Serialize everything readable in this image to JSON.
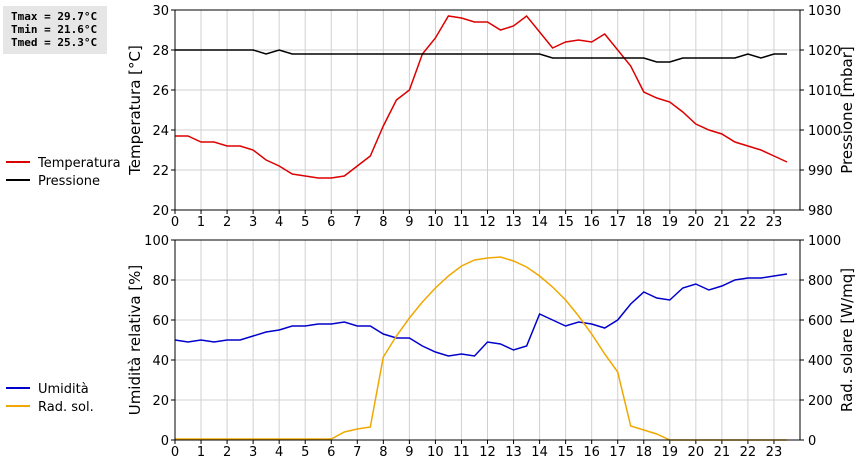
{
  "stats": {
    "tmax": "Tmax = 29.7°C",
    "tmin": "Tmin = 21.6°C",
    "tmed": "Tmed = 25.3°C"
  },
  "chart_data": [
    {
      "type": "line",
      "left_ylabel": "Temperatura [°C]",
      "right_ylabel": "Pressione [mbar]",
      "xlim": [
        0,
        24
      ],
      "xticks": [
        0,
        1,
        2,
        3,
        4,
        5,
        6,
        7,
        8,
        9,
        10,
        11,
        12,
        13,
        14,
        15,
        16,
        17,
        18,
        19,
        20,
        21,
        22,
        23
      ],
      "left_ylim": [
        20,
        30
      ],
      "left_yticks": [
        20,
        22,
        24,
        26,
        28,
        30
      ],
      "right_ylim": [
        980,
        1030
      ],
      "right_yticks": [
        980,
        990,
        1000,
        1010,
        1020,
        1030
      ],
      "grid": true,
      "series": [
        {
          "name": "Temperatura",
          "axis": "left",
          "color": "#dd0000",
          "x": [
            0,
            0.5,
            1,
            1.5,
            2,
            2.5,
            3,
            3.5,
            4,
            4.5,
            5,
            5.5,
            6,
            6.5,
            7,
            7.5,
            8,
            8.5,
            9,
            9.5,
            10,
            10.5,
            11,
            11.5,
            12,
            12.5,
            13,
            13.5,
            14,
            14.5,
            15,
            15.5,
            16,
            16.5,
            17,
            17.5,
            18,
            18.5,
            19,
            19.5,
            20,
            20.5,
            21,
            21.5,
            22,
            22.5,
            23,
            23.5
          ],
          "y": [
            23.7,
            23.7,
            23.4,
            23.4,
            23.2,
            23.2,
            23.0,
            22.5,
            22.2,
            21.8,
            21.7,
            21.6,
            21.6,
            21.7,
            22.2,
            22.7,
            24.2,
            25.5,
            26.0,
            27.8,
            28.6,
            29.7,
            29.6,
            29.4,
            29.4,
            29.0,
            29.2,
            29.7,
            28.9,
            28.1,
            28.4,
            28.5,
            28.4,
            28.8,
            28.0,
            27.2,
            25.9,
            25.6,
            25.4,
            24.9,
            24.3,
            24.0,
            23.8,
            23.4,
            23.2,
            23.0,
            22.7,
            22.4
          ]
        },
        {
          "name": "Pressione",
          "axis": "right",
          "color": "#000000",
          "x": [
            0,
            0.5,
            1,
            1.5,
            2,
            2.5,
            3,
            3.5,
            4,
            4.5,
            5,
            5.5,
            6,
            6.5,
            7,
            7.5,
            8,
            8.5,
            9,
            9.5,
            10,
            10.5,
            11,
            11.5,
            12,
            12.5,
            13,
            13.5,
            14,
            14.5,
            15,
            15.5,
            16,
            16.5,
            17,
            17.5,
            18,
            18.5,
            19,
            19.5,
            20,
            20.5,
            21,
            21.5,
            22,
            22.5,
            23,
            23.5
          ],
          "y": [
            1020,
            1020,
            1020,
            1020,
            1020,
            1020,
            1020,
            1019,
            1020,
            1019,
            1019,
            1019,
            1019,
            1019,
            1019,
            1019,
            1019,
            1019,
            1019,
            1019,
            1019,
            1019,
            1019,
            1019,
            1019,
            1019,
            1019,
            1019,
            1019,
            1018,
            1018,
            1018,
            1018,
            1018,
            1018,
            1018,
            1018,
            1017,
            1017,
            1018,
            1018,
            1018,
            1018,
            1018,
            1019,
            1018,
            1019,
            1019
          ]
        }
      ]
    },
    {
      "type": "line",
      "left_ylabel": "Umidità relativa [%]",
      "right_ylabel": "Rad. solare [W/mq]",
      "xlim": [
        0,
        24
      ],
      "xticks": [
        0,
        1,
        2,
        3,
        4,
        5,
        6,
        7,
        8,
        9,
        10,
        11,
        12,
        13,
        14,
        15,
        16,
        17,
        18,
        19,
        20,
        21,
        22,
        23
      ],
      "left_ylim": [
        0,
        100
      ],
      "left_yticks": [
        0,
        20,
        40,
        60,
        80,
        100
      ],
      "right_ylim": [
        0,
        1000
      ],
      "right_yticks": [
        0,
        200,
        400,
        600,
        800,
        1000
      ],
      "grid": true,
      "series": [
        {
          "name": "Umidità",
          "axis": "left",
          "color": "#0000cc",
          "x": [
            0,
            0.5,
            1,
            1.5,
            2,
            2.5,
            3,
            3.5,
            4,
            4.5,
            5,
            5.5,
            6,
            6.5,
            7,
            7.5,
            8,
            8.5,
            9,
            9.5,
            10,
            10.5,
            11,
            11.5,
            12,
            12.5,
            13,
            13.5,
            14,
            14.5,
            15,
            15.5,
            16,
            16.5,
            17,
            17.5,
            18,
            18.5,
            19,
            19.5,
            20,
            20.5,
            21,
            21.5,
            22,
            22.5,
            23,
            23.5
          ],
          "y": [
            50,
            49,
            50,
            49,
            50,
            50,
            52,
            54,
            55,
            57,
            57,
            58,
            58,
            59,
            57,
            57,
            53,
            51,
            51,
            47,
            44,
            42,
            43,
            42,
            49,
            48,
            45,
            47,
            63,
            60,
            57,
            59,
            58,
            56,
            60,
            68,
            74,
            71,
            70,
            76,
            78,
            75,
            77,
            80,
            81,
            81,
            82,
            83
          ]
        },
        {
          "name": "Rad. sol.",
          "axis": "right",
          "color": "#f0a800",
          "x": [
            0,
            0.5,
            1,
            1.5,
            2,
            2.5,
            3,
            3.5,
            4,
            4.5,
            5,
            5.5,
            6,
            6.5,
            7,
            7.5,
            8,
            8.5,
            9,
            9.5,
            10,
            10.5,
            11,
            11.5,
            12,
            12.5,
            13,
            13.5,
            14,
            14.5,
            15,
            15.5,
            16,
            16.5,
            17,
            17.5,
            18,
            18.5,
            19,
            19.5,
            20,
            20.5,
            21,
            21.5,
            22,
            22.5,
            23,
            23.5
          ],
          "y": [
            5,
            5,
            5,
            5,
            5,
            5,
            5,
            5,
            5,
            5,
            5,
            5,
            5,
            40,
            55,
            65,
            415,
            520,
            610,
            690,
            760,
            820,
            870,
            900,
            910,
            915,
            895,
            865,
            820,
            765,
            700,
            620,
            530,
            430,
            340,
            70,
            50,
            30,
            0,
            0,
            0,
            0,
            0,
            0,
            0,
            0,
            0,
            0
          ]
        }
      ]
    }
  ]
}
